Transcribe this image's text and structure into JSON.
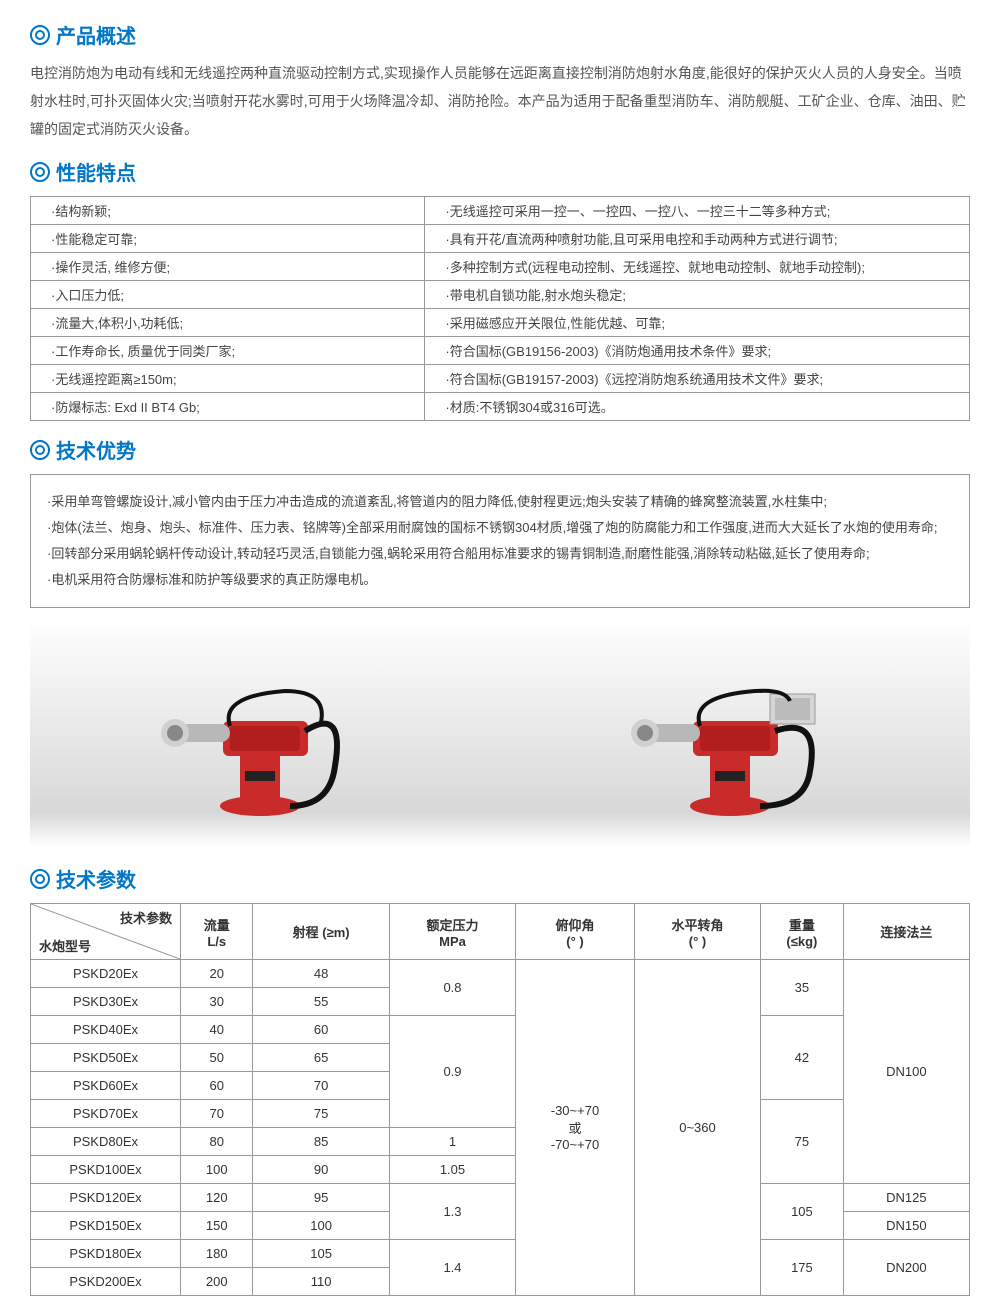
{
  "overview": {
    "title": "产品概述",
    "text": "电控消防炮为电动有线和无线遥控两种直流驱动控制方式,实现操作人员能够在远距离直接控制消防炮射水角度,能很好的保护灭火人员的人身安全。当喷射水柱时,可扑灭固体火灾;当喷射开花水雾时,可用于火场降温冷却、消防抢险。本产品为适用于配备重型消防车、消防舰艇、工矿企业、仓库、油田、贮罐的固定式消防灭火设备。"
  },
  "features": {
    "title": "性能特点",
    "rows": [
      [
        "·结构新颖;",
        "·无线遥控可采用一控一、一控四、一控八、一控三十二等多种方式;"
      ],
      [
        "·性能稳定可靠;",
        "·具有开花/直流两种喷射功能,且可采用电控和手动两种方式进行调节;"
      ],
      [
        "·操作灵活, 维修方便;",
        "·多种控制方式(远程电动控制、无线遥控、就地电动控制、就地手动控制);"
      ],
      [
        "·入口压力低;",
        "·带电机自锁功能,射水炮头稳定;"
      ],
      [
        "·流量大,体积小,功耗低;",
        "·采用磁感应开关限位,性能优越、可靠;"
      ],
      [
        "·工作寿命长, 质量优于同类厂家;",
        "·符合国标(GB19156-2003)《消防炮通用技术条件》要求;"
      ],
      [
        "·无线遥控距离≥150m;",
        "·符合国标(GB19157-2003)《远控消防炮系统通用技术文件》要求;"
      ],
      [
        "·防爆标志: Exd II BT4 Gb;",
        "·材质:不锈钢304或316可选。"
      ]
    ]
  },
  "advantages": {
    "title": "技术优势",
    "items": [
      "·采用单弯管螺旋设计,减小管内由于压力冲击造成的流道紊乱,将管道内的阻力降低,使射程更远;炮头安装了精确的蜂窝整流装置,水柱集中;",
      "·炮体(法兰、炮身、炮头、标准件、压力表、铭牌等)全部采用耐腐蚀的国标不锈钢304材质,增强了炮的防腐能力和工作强度,进而大大延长了水炮的使用寿命;",
      "·回转部分采用蜗轮蜗杆传动设计,转动轻巧灵活,自锁能力强,蜗轮采用符合船用标准要求的锡青铜制造,耐磨性能强,消除转动粘磁,延长了使用寿命;",
      "·电机采用符合防爆标准和防护等级要求的真正防爆电机。"
    ]
  },
  "spec": {
    "title": "技术参数",
    "diag_top": "技术参数",
    "diag_bottom": "水炮型号",
    "headers": [
      "流量\nL/s",
      "射程 (≥m)",
      "额定压力\nMPa",
      "俯仰角\n(°  )",
      "水平转角\n(°  )",
      "重量\n(≤kg)",
      "连接法兰"
    ],
    "pitch": "-30~+70\n或\n-70~+70",
    "horiz": "0~360",
    "rows": [
      {
        "model": "PSKD20Ex",
        "flow": "20",
        "range": "48"
      },
      {
        "model": "PSKD30Ex",
        "flow": "30",
        "range": "55"
      },
      {
        "model": "PSKD40Ex",
        "flow": "40",
        "range": "60"
      },
      {
        "model": "PSKD50Ex",
        "flow": "50",
        "range": "65"
      },
      {
        "model": "PSKD60Ex",
        "flow": "60",
        "range": "70"
      },
      {
        "model": "PSKD70Ex",
        "flow": "70",
        "range": "75"
      },
      {
        "model": "PSKD80Ex",
        "flow": "80",
        "range": "85"
      },
      {
        "model": "PSKD100Ex",
        "flow": "100",
        "range": "90"
      },
      {
        "model": "PSKD120Ex",
        "flow": "120",
        "range": "95"
      },
      {
        "model": "PSKD150Ex",
        "flow": "150",
        "range": "100"
      },
      {
        "model": "PSKD180Ex",
        "flow": "180",
        "range": "105"
      },
      {
        "model": "PSKD200Ex",
        "flow": "200",
        "range": "110"
      }
    ],
    "pressure": [
      {
        "val": "0.8",
        "span": 2
      },
      {
        "val": "0.9",
        "span": 4
      },
      {
        "val": "1",
        "span": 1
      },
      {
        "val": "1.05",
        "span": 1
      },
      {
        "val": "1.3",
        "span": 2
      },
      {
        "val": "1.4",
        "span": 2
      }
    ],
    "weight": [
      {
        "val": "35",
        "span": 2
      },
      {
        "val": "42",
        "span": 3
      },
      {
        "val": "75",
        "span": 3
      },
      {
        "val": "105",
        "span": 2
      },
      {
        "val": "175",
        "span": 2
      }
    ],
    "flange": [
      {
        "val": "DN100",
        "span": 8
      },
      {
        "val": "DN125",
        "span": 1
      },
      {
        "val": "DN150",
        "span": 1
      },
      {
        "val": "DN200",
        "span": 2
      }
    ]
  },
  "colors": {
    "brand": "#0077c8",
    "body_red": "#c92a2a",
    "metal": "#b8b8b8",
    "dark": "#222"
  }
}
